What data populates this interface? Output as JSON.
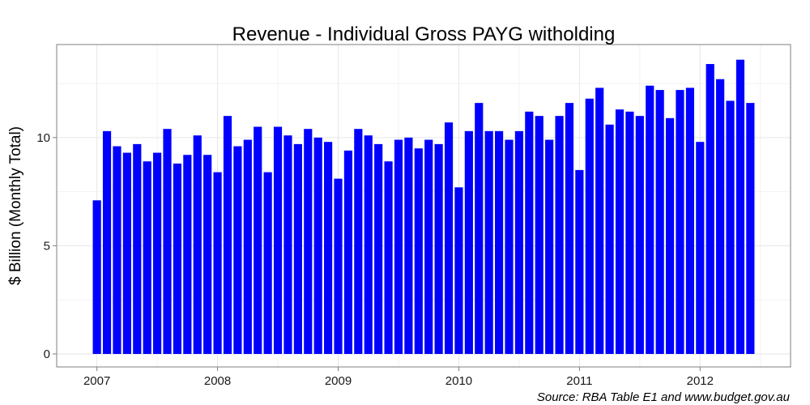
{
  "chart_data": {
    "type": "bar",
    "title": "Revenue - Individual Gross PAYG witholding",
    "xlabel": "",
    "ylabel": "$ Billion (Monthly Total)",
    "source": "Source: RBA Table E1 and www.budget.gov.au",
    "x_tick_labels": [
      "2007",
      "2008",
      "2009",
      "2010",
      "2011",
      "2012"
    ],
    "y_tick_labels": [
      "0",
      "5",
      "10"
    ],
    "y_ticks": [
      0,
      5,
      10
    ],
    "ylim": [
      -0.6,
      14.3
    ],
    "xlim": [
      "2006-09",
      "2012-10"
    ],
    "grid": true,
    "bar_color": "#0000FF",
    "x": [
      "2007-01",
      "2007-02",
      "2007-03",
      "2007-04",
      "2007-05",
      "2007-06",
      "2007-07",
      "2007-08",
      "2007-09",
      "2007-10",
      "2007-11",
      "2007-12",
      "2008-01",
      "2008-02",
      "2008-03",
      "2008-04",
      "2008-05",
      "2008-06",
      "2008-07",
      "2008-08",
      "2008-09",
      "2008-10",
      "2008-11",
      "2008-12",
      "2009-01",
      "2009-02",
      "2009-03",
      "2009-04",
      "2009-05",
      "2009-06",
      "2009-07",
      "2009-08",
      "2009-09",
      "2009-10",
      "2009-11",
      "2009-12",
      "2010-01",
      "2010-02",
      "2010-03",
      "2010-04",
      "2010-05",
      "2010-06",
      "2010-07",
      "2010-08",
      "2010-09",
      "2010-10",
      "2010-11",
      "2010-12",
      "2011-01",
      "2011-02",
      "2011-03",
      "2011-04",
      "2011-05",
      "2011-06",
      "2011-07",
      "2011-08",
      "2011-09",
      "2011-10",
      "2011-11",
      "2011-12",
      "2012-01",
      "2012-02",
      "2012-03",
      "2012-04",
      "2012-05",
      "2012-06"
    ],
    "values": [
      7.1,
      10.3,
      9.6,
      9.3,
      9.7,
      8.9,
      9.3,
      10.4,
      8.8,
      9.2,
      10.1,
      9.2,
      8.4,
      11.0,
      9.6,
      9.9,
      10.5,
      8.4,
      10.5,
      10.1,
      9.7,
      10.4,
      10.0,
      9.8,
      8.1,
      9.4,
      10.4,
      10.1,
      9.7,
      8.9,
      9.9,
      10.0,
      9.5,
      9.9,
      9.7,
      10.7,
      7.7,
      10.3,
      11.6,
      10.3,
      10.3,
      9.9,
      10.3,
      11.2,
      11.0,
      9.9,
      11.0,
      11.6,
      8.5,
      11.8,
      12.3,
      10.6,
      11.3,
      11.2,
      11.0,
      12.4,
      12.2,
      10.9,
      12.2,
      12.3,
      9.8,
      13.4,
      12.7,
      11.7,
      13.6,
      11.6
    ]
  }
}
